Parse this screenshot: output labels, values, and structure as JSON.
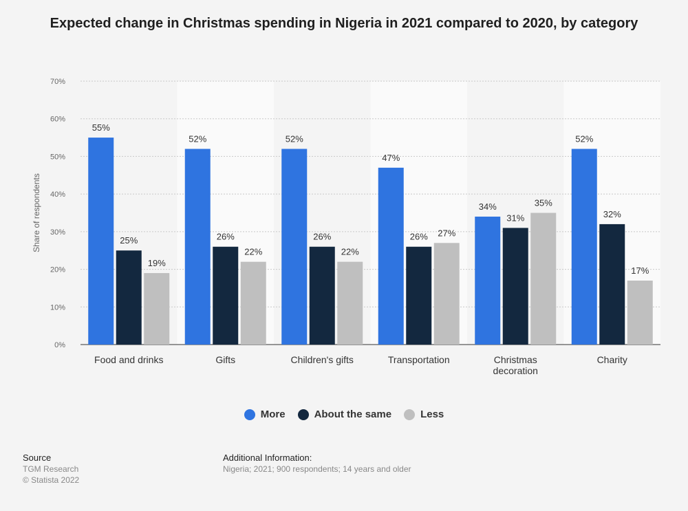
{
  "chart_data": {
    "type": "bar",
    "title": "Expected change in Christmas spending in Nigeria in 2021 compared to 2020, by category",
    "ylabel": "Share of respondents",
    "xlabel": "",
    "ylim": [
      0,
      70
    ],
    "yticks": [
      "0%",
      "10%",
      "20%",
      "30%",
      "40%",
      "50%",
      "60%",
      "70%"
    ],
    "categories": [
      "Food and drinks",
      "Gifts",
      "Children's gifts",
      "Transportation",
      "Christmas decoration",
      "Charity"
    ],
    "series": [
      {
        "name": "More",
        "color": "#2f74e0",
        "values": [
          55,
          52,
          52,
          47,
          34,
          52
        ]
      },
      {
        "name": "About the same",
        "color": "#13283f",
        "values": [
          25,
          26,
          26,
          26,
          31,
          32
        ]
      },
      {
        "name": "Less",
        "color": "#bfbfbf",
        "values": [
          19,
          22,
          22,
          27,
          35,
          17
        ]
      }
    ],
    "value_suffix": "%",
    "grid": true,
    "legend_position": "bottom"
  },
  "footer": {
    "source_heading": "Source",
    "source_name": "TGM Research",
    "copyright": "© Statista 2022",
    "info_heading": "Additional Information:",
    "info_text": "Nigeria; 2021; 900 respondents; 14 years and older"
  }
}
